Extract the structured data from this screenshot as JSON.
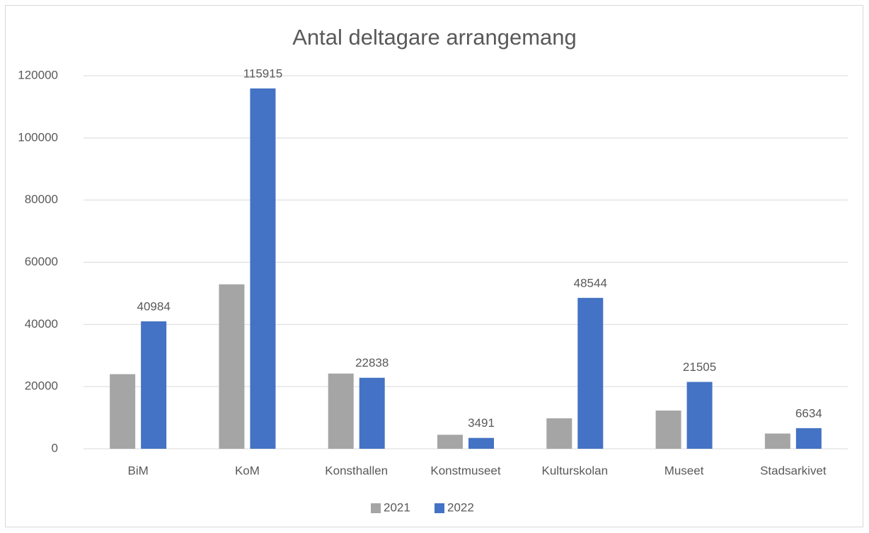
{
  "chart_data": {
    "type": "bar",
    "title": "Antal deltagare arrangemang",
    "categories": [
      "BiM",
      "KoM",
      "Konsthallen",
      "Konstmuseet",
      "Kulturskolan",
      "Museet",
      "Stadsarkivet"
    ],
    "series": [
      {
        "name": "2021",
        "color": "#a5a5a5",
        "values": [
          24000,
          52900,
          24200,
          4500,
          9800,
          12300,
          4900
        ]
      },
      {
        "name": "2022",
        "color": "#4472c4",
        "values": [
          40984,
          115915,
          22838,
          3491,
          48544,
          21505,
          6634
        ],
        "data_labels": true
      }
    ],
    "ylim": [
      0,
      120000
    ],
    "yticks": [
      0,
      20000,
      40000,
      60000,
      80000,
      100000,
      120000
    ],
    "grid": true,
    "legend": "bottom"
  }
}
